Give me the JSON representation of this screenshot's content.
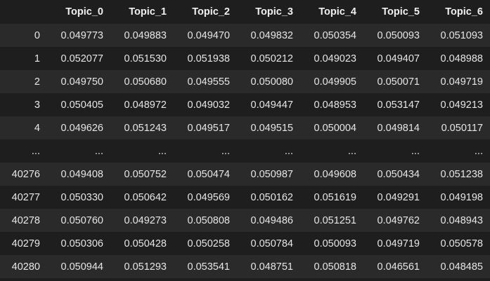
{
  "dataframe": {
    "index_header": "",
    "columns": [
      "Topic_0",
      "Topic_1",
      "Topic_2",
      "Topic_3",
      "Topic_4",
      "Topic_5",
      "Topic_6"
    ],
    "rows": [
      {
        "index": "0",
        "values": [
          "0.049773",
          "0.049883",
          "0.049470",
          "0.049832",
          "0.050354",
          "0.050093",
          "0.051093"
        ]
      },
      {
        "index": "1",
        "values": [
          "0.052077",
          "0.051530",
          "0.051938",
          "0.050212",
          "0.049023",
          "0.049407",
          "0.048988"
        ]
      },
      {
        "index": "2",
        "values": [
          "0.049750",
          "0.050680",
          "0.049555",
          "0.050080",
          "0.049905",
          "0.050071",
          "0.049719"
        ]
      },
      {
        "index": "3",
        "values": [
          "0.050405",
          "0.048972",
          "0.049032",
          "0.049447",
          "0.048953",
          "0.053147",
          "0.049213"
        ]
      },
      {
        "index": "4",
        "values": [
          "0.049626",
          "0.051243",
          "0.049517",
          "0.049515",
          "0.050004",
          "0.049814",
          "0.050117"
        ]
      },
      {
        "index": "...",
        "values": [
          "...",
          "...",
          "...",
          "...",
          "...",
          "...",
          "..."
        ]
      },
      {
        "index": "40276",
        "values": [
          "0.049408",
          "0.050752",
          "0.050474",
          "0.050987",
          "0.049608",
          "0.050434",
          "0.051238"
        ]
      },
      {
        "index": "40277",
        "values": [
          "0.050330",
          "0.050642",
          "0.049569",
          "0.050162",
          "0.051619",
          "0.049291",
          "0.049198"
        ]
      },
      {
        "index": "40278",
        "values": [
          "0.050760",
          "0.049273",
          "0.050808",
          "0.049486",
          "0.051251",
          "0.049762",
          "0.048943"
        ]
      },
      {
        "index": "40279",
        "values": [
          "0.050306",
          "0.050428",
          "0.050258",
          "0.050784",
          "0.050093",
          "0.049719",
          "0.050578"
        ]
      },
      {
        "index": "40280",
        "values": [
          "0.050944",
          "0.051293",
          "0.053541",
          "0.048751",
          "0.050818",
          "0.046561",
          "0.048485"
        ]
      }
    ]
  },
  "colors": {
    "background": "#1e1e1e",
    "row_stripe": "#2a2a2a",
    "text": "#e6e6e6"
  }
}
